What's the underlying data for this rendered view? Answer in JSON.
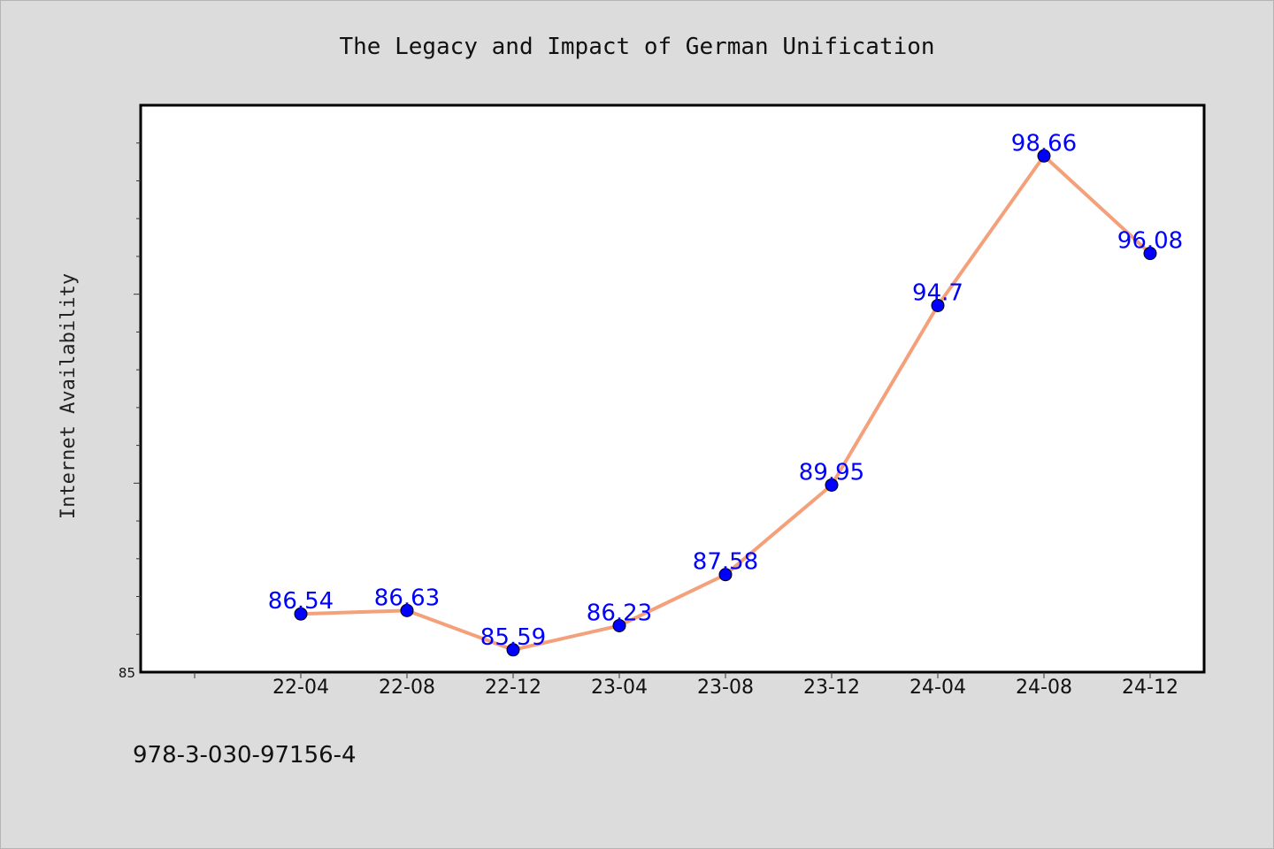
{
  "chart_data": {
    "type": "line",
    "title": "The Legacy and Impact of German Unification",
    "ylabel": "Internet Availability",
    "xlabel": "",
    "categories": [
      "22-04",
      "22-08",
      "22-12",
      "23-04",
      "23-08",
      "23-12",
      "24-04",
      "24-08",
      "24-12"
    ],
    "values": [
      86.54,
      86.63,
      85.59,
      86.23,
      87.58,
      89.95,
      94.7,
      98.66,
      96.08
    ],
    "value_labels": [
      "86.54",
      "86.63",
      "85.59",
      "86.23",
      "87.58",
      "89.95",
      "94.7",
      "98.66",
      "96.08"
    ],
    "ylim": [
      85,
      100
    ],
    "y_tick_labels": [
      "85"
    ],
    "grid": false,
    "line_color": "#f4a07a",
    "marker_color": "#0000ff",
    "label_color": "#0000ff"
  },
  "footer": {
    "isbn": "978-3-030-97156-4"
  }
}
